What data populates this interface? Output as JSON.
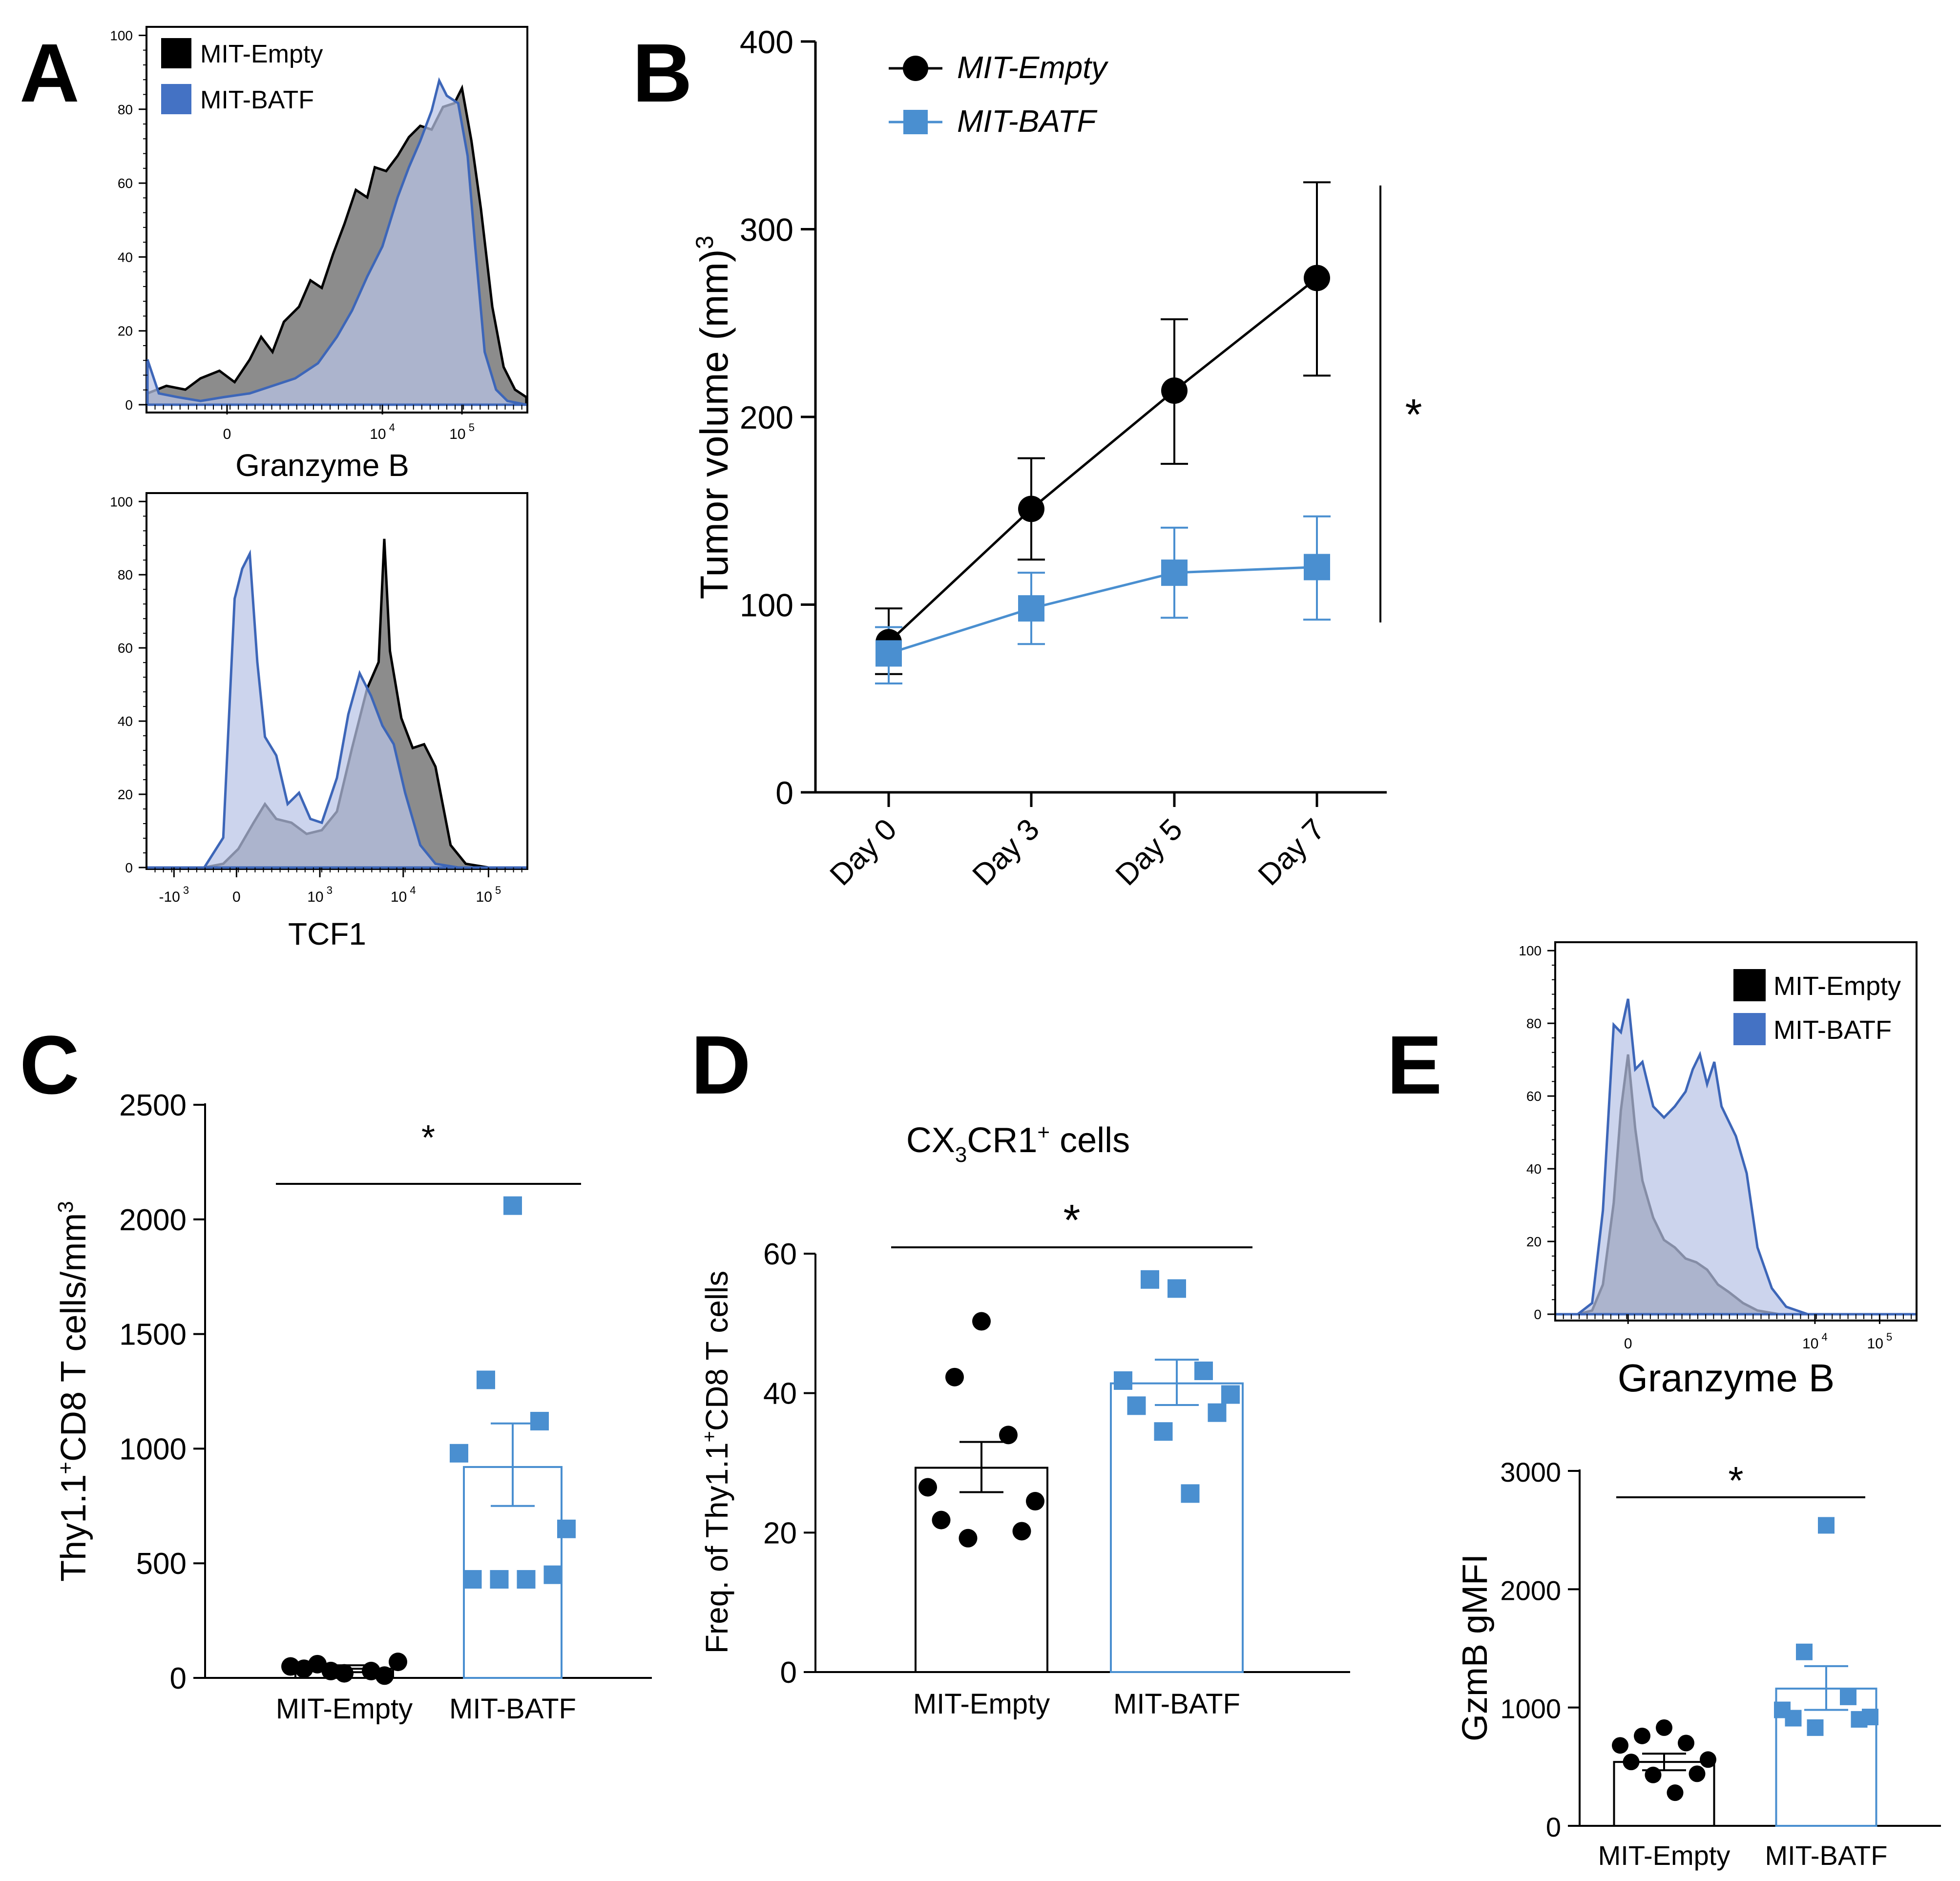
{
  "colors": {
    "empty": "#000000",
    "batf": "#4a8fd0",
    "batf_legend": "#4472c4",
    "batf_line": "#3d66b8",
    "empty_fill": "#8c8c8c",
    "batf_fill": "#b9c4e6"
  },
  "panels": {
    "A": {
      "letter": "A"
    },
    "B": {
      "letter": "B"
    },
    "C": {
      "letter": "C"
    },
    "D": {
      "letter": "D"
    },
    "E": {
      "letter": "E"
    }
  },
  "chart_data": [
    {
      "id": "A-top",
      "type": "histogram",
      "xlabel": "Granzyme B",
      "yticks": [
        "100",
        "80",
        "60",
        "40",
        "20",
        "0"
      ],
      "xticks": [
        {
          "base": "0",
          "exp": ""
        },
        {
          "base": "10",
          "exp": "4"
        },
        {
          "base": "10",
          "exp": "5"
        }
      ],
      "legend": [
        "MIT-Empty",
        "MIT-BATF"
      ],
      "ylim": [
        0,
        100
      ],
      "series": [
        {
          "name": "MIT-Empty",
          "points": [
            [
              0,
              3
            ],
            [
              0.05,
              5
            ],
            [
              0.1,
              4
            ],
            [
              0.14,
              7
            ],
            [
              0.19,
              9
            ],
            [
              0.23,
              6
            ],
            [
              0.27,
              12
            ],
            [
              0.3,
              18
            ],
            [
              0.33,
              14
            ],
            [
              0.36,
              22
            ],
            [
              0.4,
              26
            ],
            [
              0.43,
              33
            ],
            [
              0.46,
              31
            ],
            [
              0.49,
              40
            ],
            [
              0.52,
              48
            ],
            [
              0.55,
              57
            ],
            [
              0.58,
              55
            ],
            [
              0.6,
              63
            ],
            [
              0.63,
              62
            ],
            [
              0.66,
              66
            ],
            [
              0.69,
              71
            ],
            [
              0.72,
              74
            ],
            [
              0.75,
              73
            ],
            [
              0.78,
              79
            ],
            [
              0.81,
              80
            ],
            [
              0.83,
              84
            ],
            [
              0.855,
              70
            ],
            [
              0.88,
              52
            ],
            [
              0.91,
              26
            ],
            [
              0.94,
              10
            ],
            [
              0.97,
              4
            ],
            [
              1,
              2
            ]
          ]
        },
        {
          "name": "MIT-BATF",
          "points": [
            [
              0,
              12
            ],
            [
              0.03,
              3
            ],
            [
              0.08,
              2
            ],
            [
              0.14,
              1
            ],
            [
              0.2,
              2
            ],
            [
              0.27,
              3
            ],
            [
              0.33,
              5
            ],
            [
              0.39,
              7
            ],
            [
              0.45,
              11
            ],
            [
              0.5,
              18
            ],
            [
              0.54,
              25
            ],
            [
              0.58,
              34
            ],
            [
              0.62,
              42
            ],
            [
              0.66,
              55
            ],
            [
              0.69,
              63
            ],
            [
              0.72,
              70
            ],
            [
              0.75,
              78
            ],
            [
              0.77,
              86
            ],
            [
              0.79,
              82
            ],
            [
              0.82,
              80
            ],
            [
              0.845,
              66
            ],
            [
              0.865,
              42
            ],
            [
              0.89,
              14
            ],
            [
              0.92,
              4
            ],
            [
              0.95,
              1
            ],
            [
              1,
              0
            ]
          ]
        }
      ]
    },
    {
      "id": "A-bottom",
      "type": "histogram",
      "xlabel": "TCF1",
      "yticks": [
        "100",
        "80",
        "60",
        "40",
        "20",
        "0"
      ],
      "xticks": [
        {
          "base": "-10",
          "exp": "3"
        },
        {
          "base": "0",
          "exp": ""
        },
        {
          "base": "10",
          "exp": "3"
        },
        {
          "base": "10",
          "exp": "4"
        },
        {
          "base": "10",
          "exp": "5"
        }
      ],
      "ylim": [
        0,
        100
      ],
      "series": [
        {
          "name": "MIT-Empty",
          "points": [
            [
              0,
              0
            ],
            [
              0.15,
              0
            ],
            [
              0.2,
              1
            ],
            [
              0.24,
              5
            ],
            [
              0.28,
              12
            ],
            [
              0.31,
              17
            ],
            [
              0.34,
              13
            ],
            [
              0.38,
              12
            ],
            [
              0.42,
              9
            ],
            [
              0.46,
              10
            ],
            [
              0.5,
              15
            ],
            [
              0.54,
              32
            ],
            [
              0.58,
              48
            ],
            [
              0.61,
              55
            ],
            [
              0.625,
              88
            ],
            [
              0.64,
              58
            ],
            [
              0.67,
              40
            ],
            [
              0.7,
              32
            ],
            [
              0.73,
              33
            ],
            [
              0.76,
              27
            ],
            [
              0.8,
              6
            ],
            [
              0.84,
              1
            ],
            [
              0.9,
              0
            ],
            [
              1,
              0
            ]
          ]
        },
        {
          "name": "MIT-BATF",
          "points": [
            [
              0,
              0
            ],
            [
              0.15,
              0
            ],
            [
              0.2,
              8
            ],
            [
              0.23,
              72
            ],
            [
              0.25,
              80
            ],
            [
              0.27,
              84
            ],
            [
              0.29,
              55
            ],
            [
              0.31,
              35
            ],
            [
              0.34,
              30
            ],
            [
              0.37,
              17
            ],
            [
              0.4,
              20
            ],
            [
              0.43,
              13
            ],
            [
              0.46,
              12
            ],
            [
              0.5,
              24
            ],
            [
              0.53,
              41
            ],
            [
              0.56,
              52
            ],
            [
              0.59,
              46
            ],
            [
              0.62,
              38
            ],
            [
              0.65,
              33
            ],
            [
              0.68,
              20
            ],
            [
              0.72,
              6
            ],
            [
              0.76,
              1
            ],
            [
              0.82,
              0
            ],
            [
              1,
              0
            ]
          ]
        }
      ]
    },
    {
      "id": "B",
      "type": "line",
      "ylabel": "Tumor volume (mm)",
      "ylabel_sup": "3",
      "categories": [
        "Day 0",
        "Day 3",
        "Day 5",
        "Day 7"
      ],
      "ylim": [
        0,
        400
      ],
      "yticks": [
        0,
        100,
        200,
        300,
        400
      ],
      "legend": [
        "MIT-Empty",
        "MIT-BATF"
      ],
      "annotation": "*",
      "series": [
        {
          "name": "MIT-Empty",
          "values": [
            80,
            151,
            214,
            274
          ],
          "err_lo": [
            63,
            124,
            175,
            222
          ],
          "err_hi": [
            98,
            178,
            252,
            325
          ]
        },
        {
          "name": "MIT-BATF",
          "values": [
            74,
            98,
            117,
            120
          ],
          "err_lo": [
            58,
            79,
            93,
            92
          ],
          "err_hi": [
            88,
            117,
            141,
            147
          ]
        }
      ]
    },
    {
      "id": "C",
      "type": "bar-scatter",
      "ylabel_pre": "Thy1.1",
      "ylabel_sup": "+",
      "ylabel_post": "CD8 T cells/mm",
      "ylabel_sup2": "3",
      "categories": [
        "MIT-Empty",
        "MIT-BATF"
      ],
      "ylim": [
        0,
        2500
      ],
      "yticks": [
        0,
        500,
        1000,
        1500,
        2000,
        2500
      ],
      "annotation": "*",
      "series": [
        {
          "name": "MIT-Empty",
          "mean": 40,
          "sem": [
            25,
            55
          ],
          "points": [
            20,
            60,
            30,
            50,
            70,
            40,
            10,
            30
          ]
        },
        {
          "name": "MIT-BATF",
          "mean": 920,
          "sem": [
            750,
            1110
          ],
          "points": [
            2060,
            1300,
            1120,
            980,
            650,
            430,
            450,
            430,
            430
          ]
        }
      ]
    },
    {
      "id": "D",
      "type": "bar-scatter",
      "title_pre": "CX",
      "title_sub": "3",
      "title_mid": "CR1",
      "title_sup": "+",
      "title_post": " cells",
      "ylabel_pre": "Freq. of Thy1.1",
      "ylabel_sup": "+",
      "ylabel_post": "CD8 T cells",
      "categories": [
        "MIT-Empty",
        "MIT-BATF"
      ],
      "ylim": [
        0,
        60
      ],
      "yticks": [
        0,
        20,
        40,
        60
      ],
      "annotation": "*",
      "series": [
        {
          "name": "MIT-Empty",
          "mean": 29.3,
          "sem": [
            25.8,
            33
          ],
          "points": [
            50.3,
            42.3,
            34,
            26.5,
            24.5,
            21.8,
            20.2,
            19.2
          ]
        },
        {
          "name": "MIT-BATF",
          "mean": 41.4,
          "sem": [
            38.3,
            44.8
          ],
          "points": [
            55,
            56.3,
            43.2,
            41.8,
            39.8,
            38.2,
            37.2,
            34.5,
            25.6
          ]
        }
      ]
    },
    {
      "id": "E-hist",
      "type": "histogram",
      "xlabel": "Granzyme B",
      "yticks": [
        "100",
        "80",
        "60",
        "40",
        "20",
        "0"
      ],
      "xticks": [
        {
          "base": "0",
          "exp": ""
        },
        {
          "base": "10",
          "exp": "4"
        },
        {
          "base": "10",
          "exp": "5"
        }
      ],
      "legend": [
        "MIT-Empty",
        "MIT-BATF"
      ],
      "ylim": [
        0,
        100
      ],
      "series": [
        {
          "name": "MIT-Empty",
          "points": [
            [
              0,
              0
            ],
            [
              0.06,
              0
            ],
            [
              0.1,
              1
            ],
            [
              0.13,
              8
            ],
            [
              0.16,
              30
            ],
            [
              0.18,
              55
            ],
            [
              0.2,
              70
            ],
            [
              0.22,
              50
            ],
            [
              0.24,
              36
            ],
            [
              0.27,
              26
            ],
            [
              0.3,
              20
            ],
            [
              0.33,
              18
            ],
            [
              0.36,
              15
            ],
            [
              0.39,
              14
            ],
            [
              0.42,
              12
            ],
            [
              0.45,
              8
            ],
            [
              0.48,
              6
            ],
            [
              0.52,
              3
            ],
            [
              0.56,
              1
            ],
            [
              0.62,
              0
            ],
            [
              1,
              0
            ]
          ]
        },
        {
          "name": "MIT-BATF",
          "points": [
            [
              0,
              0
            ],
            [
              0.06,
              0
            ],
            [
              0.1,
              3
            ],
            [
              0.13,
              28
            ],
            [
              0.16,
              78
            ],
            [
              0.18,
              76
            ],
            [
              0.2,
              85
            ],
            [
              0.22,
              66
            ],
            [
              0.24,
              68
            ],
            [
              0.27,
              56
            ],
            [
              0.3,
              53
            ],
            [
              0.33,
              56
            ],
            [
              0.36,
              60
            ],
            [
              0.38,
              66
            ],
            [
              0.4,
              70
            ],
            [
              0.42,
              62
            ],
            [
              0.44,
              68
            ],
            [
              0.46,
              56
            ],
            [
              0.5,
              48
            ],
            [
              0.53,
              38
            ],
            [
              0.56,
              18
            ],
            [
              0.6,
              7
            ],
            [
              0.64,
              2
            ],
            [
              0.7,
              0
            ],
            [
              1,
              0
            ]
          ]
        }
      ]
    },
    {
      "id": "E-bar",
      "type": "bar-scatter",
      "ylabel": "GzmB gMFI",
      "categories": [
        "MIT-Empty",
        "MIT-BATF"
      ],
      "ylim": [
        0,
        3000
      ],
      "yticks": [
        0,
        1000,
        2000,
        3000
      ],
      "annotation": "*",
      "series": [
        {
          "name": "MIT-Empty",
          "mean": 540,
          "sem": [
            470,
            610
          ],
          "points": [
            830,
            760,
            700,
            680,
            560,
            540,
            440,
            430,
            280
          ]
        },
        {
          "name": "MIT-BATF",
          "mean": 1160,
          "sem": [
            980,
            1350
          ],
          "points": [
            2540,
            1470,
            1090,
            980,
            920,
            910,
            900,
            830
          ]
        }
      ]
    }
  ]
}
